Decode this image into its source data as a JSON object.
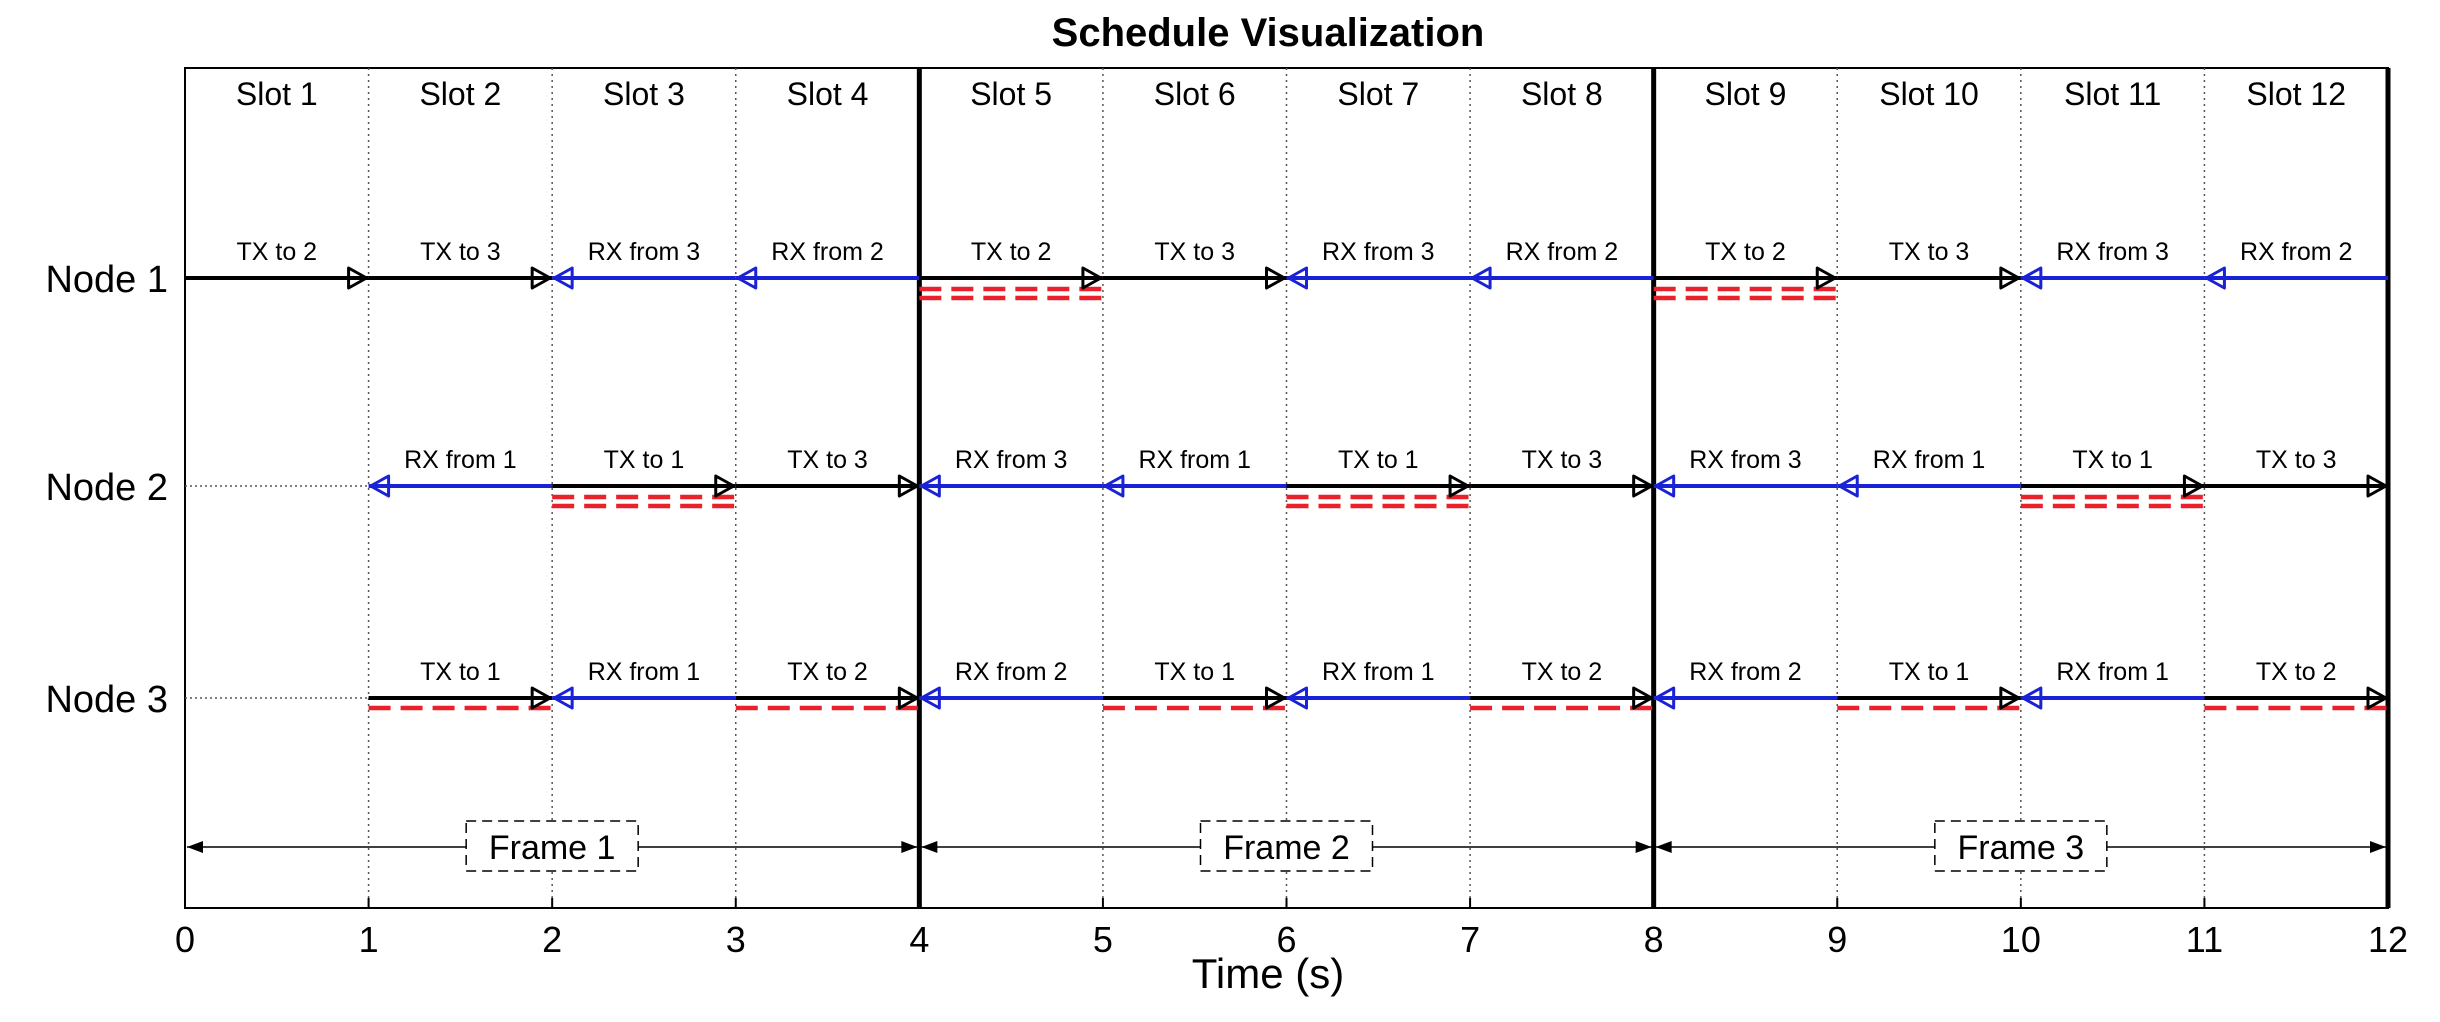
{
  "title": "Schedule Visualization",
  "xlabel": "Time (s)",
  "x_range": [
    0,
    12
  ],
  "x_ticks": [
    "0",
    "1",
    "2",
    "3",
    "4",
    "5",
    "6",
    "7",
    "8",
    "9",
    "10",
    "11",
    "12"
  ],
  "slot_labels": [
    "Slot 1",
    "Slot 2",
    "Slot 3",
    "Slot 4",
    "Slot 5",
    "Slot 6",
    "Slot 7",
    "Slot 8",
    "Slot 9",
    "Slot 10",
    "Slot 11",
    "Slot 12"
  ],
  "frame_boundaries": [
    0,
    4,
    8,
    12
  ],
  "colors": {
    "tx": "#000000",
    "rx": "#1a22d6",
    "highlight": "#e8212a",
    "frame": "#000000"
  },
  "nodes": [
    {
      "label": "Node 1",
      "starts_at": 0,
      "segments": [
        {
          "label": "TX to 2",
          "kind": "tx",
          "x0": 0,
          "x1": 1
        },
        {
          "label": "TX to 3",
          "kind": "tx",
          "x0": 1,
          "x1": 2
        },
        {
          "label": "RX from 3",
          "kind": "rx",
          "x0": 2,
          "x1": 3
        },
        {
          "label": "RX from 2",
          "kind": "rx",
          "x0": 3,
          "x1": 4
        },
        {
          "label": "TX to 2",
          "kind": "tx",
          "x0": 4,
          "x1": 5
        },
        {
          "label": "TX to 3",
          "kind": "tx",
          "x0": 5,
          "x1": 6
        },
        {
          "label": "RX from 3",
          "kind": "rx",
          "x0": 6,
          "x1": 7
        },
        {
          "label": "RX from 2",
          "kind": "rx",
          "x0": 7,
          "x1": 8
        },
        {
          "label": "TX to 2",
          "kind": "tx",
          "x0": 8,
          "x1": 9
        },
        {
          "label": "TX to 3",
          "kind": "tx",
          "x0": 9,
          "x1": 10
        },
        {
          "label": "RX from 3",
          "kind": "rx",
          "x0": 10,
          "x1": 11
        },
        {
          "label": "RX from 2",
          "kind": "rx",
          "x0": 11,
          "x1": 12
        }
      ],
      "highlights": [
        [
          4,
          5
        ],
        [
          8,
          9
        ]
      ],
      "highlight_style": "double"
    },
    {
      "label": "Node 2",
      "starts_at": 1,
      "segments": [
        {
          "label": "RX from 1",
          "kind": "rx",
          "x0": 1,
          "x1": 2
        },
        {
          "label": "TX to 1",
          "kind": "tx",
          "x0": 2,
          "x1": 3
        },
        {
          "label": "TX to 3",
          "kind": "tx",
          "x0": 3,
          "x1": 4
        },
        {
          "label": "RX from 3",
          "kind": "rx",
          "x0": 4,
          "x1": 5
        },
        {
          "label": "RX from 1",
          "kind": "rx",
          "x0": 5,
          "x1": 6
        },
        {
          "label": "TX to 1",
          "kind": "tx",
          "x0": 6,
          "x1": 7
        },
        {
          "label": "TX to 3",
          "kind": "tx",
          "x0": 7,
          "x1": 8
        },
        {
          "label": "RX from 3",
          "kind": "rx",
          "x0": 8,
          "x1": 9
        },
        {
          "label": "RX from 1",
          "kind": "rx",
          "x0": 9,
          "x1": 10
        },
        {
          "label": "TX to 1",
          "kind": "tx",
          "x0": 10,
          "x1": 11
        },
        {
          "label": "TX to 3",
          "kind": "tx",
          "x0": 11,
          "x1": 12
        }
      ],
      "highlights": [
        [
          2,
          3
        ],
        [
          6,
          7
        ],
        [
          10,
          11
        ]
      ],
      "highlight_style": "double"
    },
    {
      "label": "Node 3",
      "starts_at": 1,
      "segments": [
        {
          "label": "TX to 1",
          "kind": "tx",
          "x0": 1,
          "x1": 2
        },
        {
          "label": "RX from 1",
          "kind": "rx",
          "x0": 2,
          "x1": 3
        },
        {
          "label": "TX to 2",
          "kind": "tx",
          "x0": 3,
          "x1": 4
        },
        {
          "label": "RX from 2",
          "kind": "rx",
          "x0": 4,
          "x1": 5
        },
        {
          "label": "TX to 1",
          "kind": "tx",
          "x0": 5,
          "x1": 6
        },
        {
          "label": "RX from 1",
          "kind": "rx",
          "x0": 6,
          "x1": 7
        },
        {
          "label": "TX to 2",
          "kind": "tx",
          "x0": 7,
          "x1": 8
        },
        {
          "label": "RX from 2",
          "kind": "rx",
          "x0": 8,
          "x1": 9
        },
        {
          "label": "TX to 1",
          "kind": "tx",
          "x0": 9,
          "x1": 10
        },
        {
          "label": "RX from 1",
          "kind": "rx",
          "x0": 10,
          "x1": 11
        },
        {
          "label": "TX to 2",
          "kind": "tx",
          "x0": 11,
          "x1": 12
        }
      ],
      "highlights": [
        [
          1,
          2
        ],
        [
          3,
          4
        ],
        [
          5,
          6
        ],
        [
          7,
          8
        ],
        [
          9,
          10
        ],
        [
          11,
          12
        ]
      ],
      "highlight_style": "single"
    }
  ],
  "frames": [
    {
      "label": "Frame 1",
      "x0": 0,
      "x1": 4
    },
    {
      "label": "Frame 2",
      "x0": 4,
      "x1": 8
    },
    {
      "label": "Frame 3",
      "x0": 8,
      "x1": 12
    }
  ]
}
